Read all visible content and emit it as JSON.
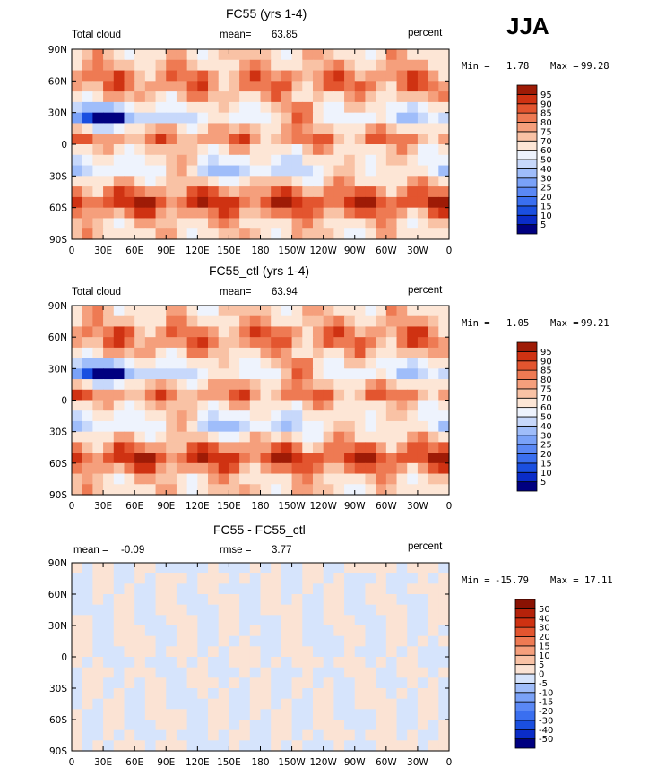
{
  "season": "JJA",
  "chart_data": [
    {
      "type": "heatmap",
      "title": "FC55 (yrs 1-4)",
      "variable": "Total cloud",
      "units": "percent",
      "mean_label": "mean=",
      "mean": "63.85",
      "min": "1.78",
      "max": "99.28",
      "x_ticks": [
        "0",
        "30E",
        "60E",
        "90E",
        "120E",
        "150E",
        "180",
        "150W",
        "120W",
        "90W",
        "60W",
        "30W",
        "0"
      ],
      "y_ticks": [
        "90N",
        "60N",
        "30N",
        "0",
        "30S",
        "60S",
        "90S"
      ],
      "levels": [
        "5",
        "10",
        "15",
        "20",
        "25",
        "30",
        "40",
        "50",
        "60",
        "70",
        "75",
        "80",
        "85",
        "90",
        "95"
      ],
      "colors": [
        "#000080",
        "#0a2cc8",
        "#1a4fe0",
        "#3a6ff0",
        "#5a88f5",
        "#7aa2f8",
        "#9fbdfa",
        "#c7d8fb",
        "#eef3fd",
        "#fde6d6",
        "#f9c2a5",
        "#f59f7c",
        "#ee7a53",
        "#e3552f",
        "#cf3212",
        "#9e1b06"
      ]
    },
    {
      "type": "heatmap",
      "title": "FC55_ctl (yrs 1-4)",
      "variable": "Total cloud",
      "units": "percent",
      "mean_label": "mean=",
      "mean": "63.94",
      "min": "1.05",
      "max": "99.21",
      "x_ticks": [
        "0",
        "30E",
        "60E",
        "90E",
        "120E",
        "150E",
        "180",
        "150W",
        "120W",
        "90W",
        "60W",
        "30W",
        "0"
      ],
      "y_ticks": [
        "90N",
        "60N",
        "30N",
        "0",
        "30S",
        "60S",
        "90S"
      ],
      "levels": [
        "5",
        "10",
        "15",
        "20",
        "25",
        "30",
        "40",
        "50",
        "60",
        "70",
        "75",
        "80",
        "85",
        "90",
        "95"
      ],
      "colors": [
        "#000080",
        "#0a2cc8",
        "#1a4fe0",
        "#3a6ff0",
        "#5a88f5",
        "#7aa2f8",
        "#9fbdfa",
        "#c7d8fb",
        "#eef3fd",
        "#fde6d6",
        "#f9c2a5",
        "#f59f7c",
        "#ee7a53",
        "#e3552f",
        "#cf3212",
        "#9e1b06"
      ]
    },
    {
      "type": "heatmap",
      "title": "FC55 - FC55_ctl",
      "units": "percent",
      "mean_label": "mean =",
      "mean": "-0.09",
      "rmse_label": "rmse =",
      "rmse": "3.77",
      "min": "-15.79",
      "max": "17.11",
      "x_ticks": [
        "0",
        "30E",
        "60E",
        "90E",
        "120E",
        "150E",
        "180",
        "150W",
        "120W",
        "90W",
        "60W",
        "30W",
        "0"
      ],
      "y_ticks": [
        "90N",
        "60N",
        "30N",
        "0",
        "30S",
        "60S",
        "90S"
      ],
      "levels": [
        "-50",
        "-40",
        "-30",
        "-20",
        "-15",
        "-10",
        "-5",
        "0",
        "5",
        "10",
        "15",
        "20",
        "30",
        "40",
        "50"
      ],
      "colors": [
        "#000080",
        "#0a2cc8",
        "#1a4fe0",
        "#3a6ff0",
        "#5a88f5",
        "#7aa2f8",
        "#9fbdfa",
        "#d6e4fc",
        "#fbe3d4",
        "#f9c2a5",
        "#f59f7c",
        "#ee7a53",
        "#e3552f",
        "#cf3212",
        "#b5220a",
        "#8a1203"
      ]
    }
  ]
}
